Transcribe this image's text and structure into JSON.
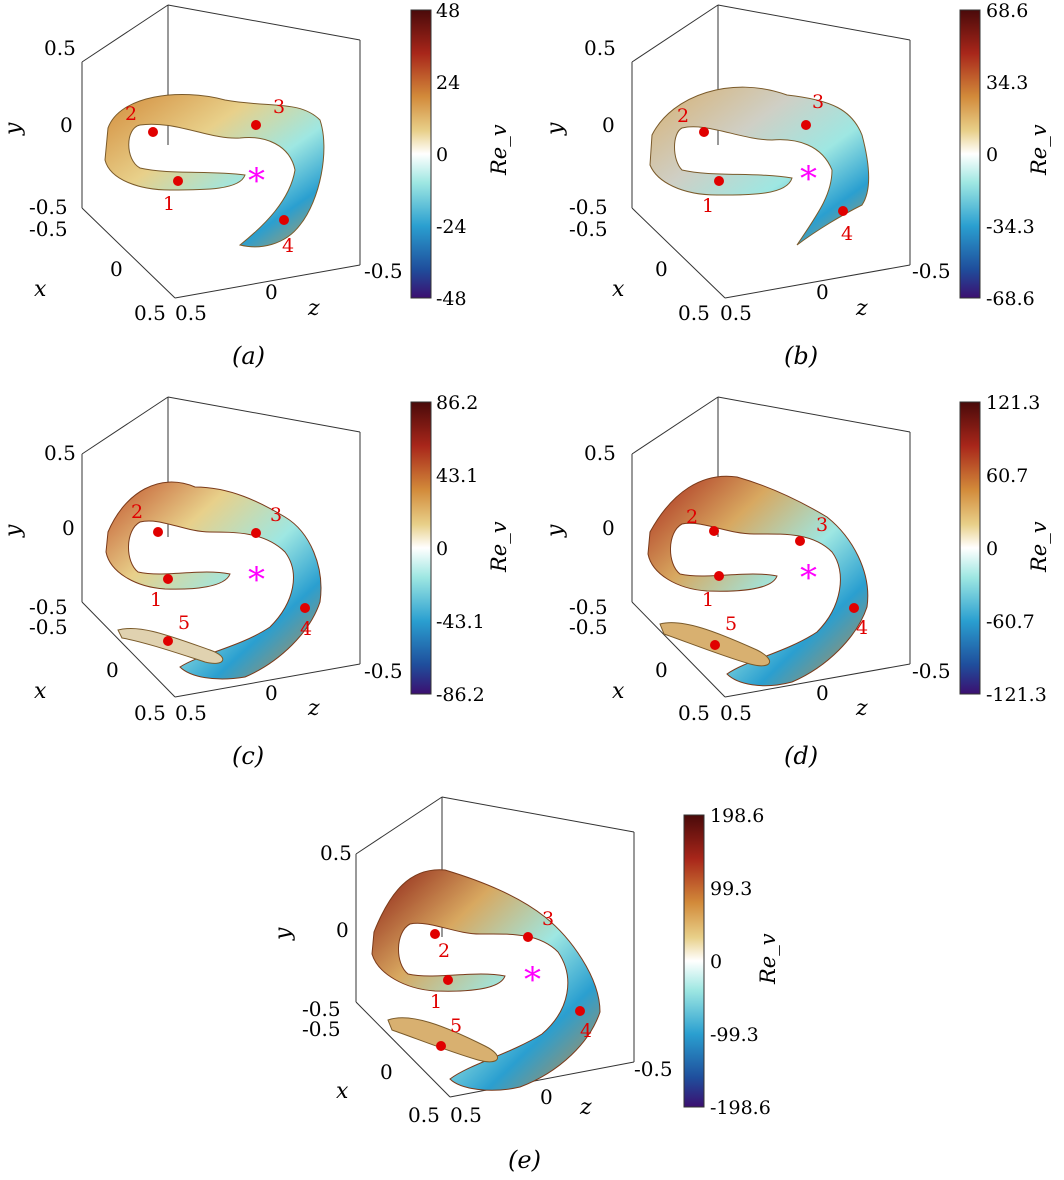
{
  "panels": [
    {
      "id": "a",
      "caption": "(a)",
      "colorbar": {
        "label": "Re_v",
        "ticks": [
          "48",
          "24",
          "0",
          "-24",
          "-48"
        ]
      },
      "axes": {
        "y_label": "y",
        "x_label": "x",
        "z_label": "z",
        "y_ticks": [
          "0.5",
          "0",
          "-0.5"
        ],
        "x_ticks": [
          "-0.5",
          "0",
          "0.5"
        ],
        "z_ticks": [
          "0.5",
          "0",
          "-0.5"
        ]
      },
      "markers": [
        "1",
        "2",
        "3",
        "4"
      ],
      "core_marker": "*"
    },
    {
      "id": "b",
      "caption": "(b)",
      "colorbar": {
        "label": "Re_v",
        "ticks": [
          "68.6",
          "34.3",
          "0",
          "-34.3",
          "-68.6"
        ]
      },
      "axes": {
        "y_label": "y",
        "x_label": "x",
        "z_label": "z",
        "y_ticks": [
          "0.5",
          "0",
          "-0.5"
        ],
        "x_ticks": [
          "-0.5",
          "0",
          "0.5"
        ],
        "z_ticks": [
          "0.5",
          "0",
          "-0.5"
        ]
      },
      "markers": [
        "1",
        "2",
        "3",
        "4"
      ],
      "core_marker": "*"
    },
    {
      "id": "c",
      "caption": "(c)",
      "colorbar": {
        "label": "Re_v",
        "ticks": [
          "86.2",
          "43.1",
          "0",
          "-43.1",
          "-86.2"
        ]
      },
      "axes": {
        "y_label": "y",
        "x_label": "x",
        "z_label": "z",
        "y_ticks": [
          "0.5",
          "0",
          "-0.5"
        ],
        "x_ticks": [
          "-0.5",
          "0",
          "0.5"
        ],
        "z_ticks": [
          "0.5",
          "0",
          "-0.5"
        ]
      },
      "markers": [
        "1",
        "2",
        "3",
        "4",
        "5"
      ],
      "core_marker": "*"
    },
    {
      "id": "d",
      "caption": "(d)",
      "colorbar": {
        "label": "Re_v",
        "ticks": [
          "121.3",
          "60.7",
          "0",
          "-60.7",
          "-121.3"
        ]
      },
      "axes": {
        "y_label": "y",
        "x_label": "x",
        "z_label": "z",
        "y_ticks": [
          "0.5",
          "0",
          "-0.5"
        ],
        "x_ticks": [
          "-0.5",
          "0",
          "0.5"
        ],
        "z_ticks": [
          "0.5",
          "0",
          "-0.5"
        ]
      },
      "markers": [
        "1",
        "2",
        "3",
        "4",
        "5"
      ],
      "core_marker": "*"
    },
    {
      "id": "e",
      "caption": "(e)",
      "colorbar": {
        "label": "Re_v",
        "ticks": [
          "198.6",
          "99.3",
          "0",
          "-99.3",
          "-198.6"
        ]
      },
      "axes": {
        "y_label": "y",
        "x_label": "x",
        "z_label": "z",
        "y_ticks": [
          "0.5",
          "0",
          "-0.5"
        ],
        "x_ticks": [
          "-0.5",
          "0",
          "0.5"
        ],
        "z_ticks": [
          "0.5",
          "0",
          "-0.5"
        ]
      },
      "markers": [
        "1",
        "2",
        "3",
        "4",
        "5"
      ],
      "core_marker": "*"
    }
  ],
  "colors": {
    "marker": "#e00000",
    "core_marker": "#ff00ff",
    "colormap": [
      "#3b0f70",
      "#1f4e9c",
      "#2a9fd0",
      "#9ee7e2",
      "#ffffff",
      "#e8d08a",
      "#d28a3a",
      "#a8261a",
      "#4a0a0a"
    ]
  }
}
